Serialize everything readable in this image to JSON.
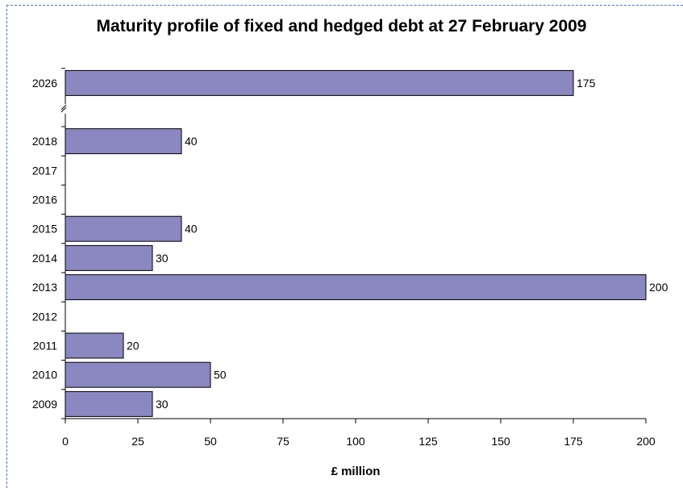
{
  "title": "Maturity profile of fixed and hedged debt at 27 February 2009",
  "colors": {
    "bar": "#8b87c0",
    "bar_border": "#000000",
    "frame": "#4472c4"
  },
  "chart_data": {
    "type": "bar",
    "orientation": "horizontal",
    "title": "Maturity profile of fixed and hedged debt at 27 February 2009",
    "xlabel": "£ million",
    "ylabel": "",
    "xlim": [
      0,
      200
    ],
    "xticks": [
      0,
      25,
      50,
      75,
      100,
      125,
      150,
      175,
      200
    ],
    "axis_break_between": [
      "2018",
      "2026"
    ],
    "grid": false,
    "categories": [
      "2009",
      "2010",
      "2011",
      "2012",
      "2013",
      "2014",
      "2015",
      "2016",
      "2017",
      "2018",
      "2026"
    ],
    "values": [
      30,
      50,
      20,
      null,
      200,
      30,
      40,
      null,
      null,
      40,
      175
    ],
    "data_labels": [
      "30",
      "50",
      "20",
      "",
      "200",
      "30",
      "40",
      "",
      "",
      "40",
      "175"
    ]
  }
}
